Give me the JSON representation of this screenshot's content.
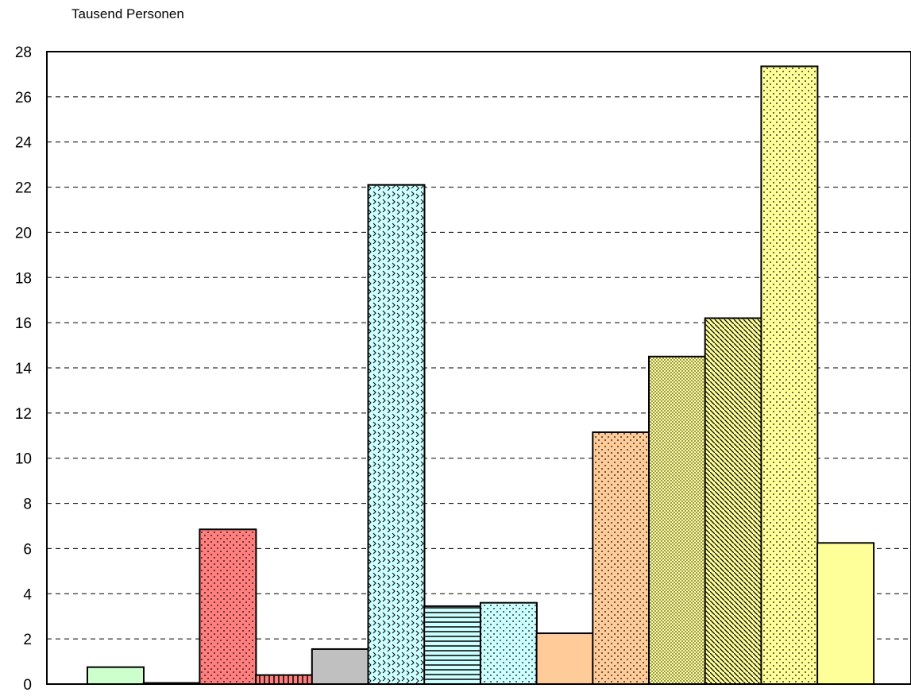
{
  "chart_data": {
    "type": "bar",
    "title": "",
    "xlabel": "",
    "ylabel": "Tausend Personen",
    "ylim": [
      0,
      28
    ],
    "yticks": [
      0,
      2,
      4,
      6,
      8,
      10,
      12,
      14,
      16,
      18,
      20,
      22,
      24,
      26,
      28
    ],
    "grid": true,
    "legend": "none",
    "bars": [
      {
        "value": 0.75,
        "color": "#ccffcc",
        "pattern": "none"
      },
      {
        "value": 0.05,
        "color": "#ffffff",
        "pattern": "none"
      },
      {
        "value": 6.85,
        "color": "#ff7f7f",
        "pattern": "dots"
      },
      {
        "value": 0.4,
        "color": "#ff7f7f",
        "pattern": "vlines"
      },
      {
        "value": 1.55,
        "color": "#c0c0c0",
        "pattern": "none"
      },
      {
        "value": 22.1,
        "color": "#ccffff",
        "pattern": "zigzag"
      },
      {
        "value": 3.45,
        "color": "#ccffff",
        "pattern": "hlines"
      },
      {
        "value": 3.6,
        "color": "#ccffff",
        "pattern": "dots"
      },
      {
        "value": 2.25,
        "color": "#ffcc99",
        "pattern": "none"
      },
      {
        "value": 11.15,
        "color": "#ffcc99",
        "pattern": "dots"
      },
      {
        "value": 14.5,
        "color": "#ffff99",
        "pattern": "densedots"
      },
      {
        "value": 16.2,
        "color": "#ffff99",
        "pattern": "diag"
      },
      {
        "value": 27.35,
        "color": "#ffff99",
        "pattern": "dots"
      },
      {
        "value": 6.25,
        "color": "#ffff99",
        "pattern": "none"
      }
    ]
  }
}
